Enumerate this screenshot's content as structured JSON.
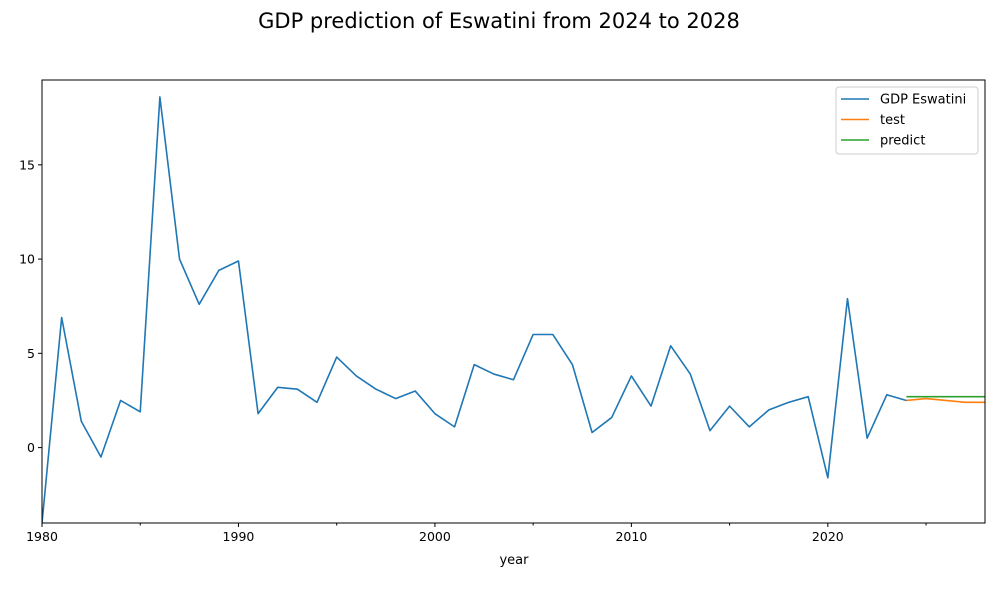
{
  "chart_data": {
    "type": "line",
    "title": "GDP prediction of Eswatini from 2024 to 2028",
    "xlabel": "year",
    "ylabel": "",
    "xlim": [
      1980,
      2028
    ],
    "ylim": [
      -4.0,
      19.5
    ],
    "xticks_major": [
      1980,
      1990,
      2000,
      2010,
      2020
    ],
    "xticks_minor": [
      1985,
      1995,
      2005,
      2015,
      2025
    ],
    "yticks": [
      0,
      5,
      10,
      15
    ],
    "legend_position": "top-right",
    "grid": false,
    "series": [
      {
        "name": "GDP Eswatini",
        "color": "#1f77b4",
        "x": [
          1980,
          1981,
          1982,
          1983,
          1984,
          1985,
          1986,
          1987,
          1988,
          1989,
          1990,
          1991,
          1992,
          1993,
          1994,
          1995,
          1996,
          1997,
          1998,
          1999,
          2000,
          2001,
          2002,
          2003,
          2004,
          2005,
          2006,
          2007,
          2008,
          2009,
          2010,
          2011,
          2012,
          2013,
          2014,
          2015,
          2016,
          2017,
          2018,
          2019,
          2020,
          2021,
          2022,
          2023,
          2024
        ],
        "values": [
          -4.0,
          6.9,
          1.4,
          -0.5,
          2.5,
          1.9,
          18.6,
          10.0,
          7.6,
          9.4,
          9.9,
          1.8,
          3.2,
          3.1,
          2.4,
          4.8,
          3.8,
          3.1,
          2.6,
          3.0,
          1.8,
          1.1,
          4.4,
          3.9,
          3.6,
          6.0,
          6.0,
          4.4,
          0.8,
          1.6,
          3.8,
          2.2,
          5.4,
          3.9,
          0.9,
          2.2,
          1.1,
          2.0,
          2.4,
          2.7,
          -1.6,
          7.9,
          0.5,
          2.8,
          2.5
        ]
      },
      {
        "name": "test",
        "color": "#ff7f0e",
        "x": [
          2024,
          2025,
          2026,
          2027,
          2028
        ],
        "values": [
          2.5,
          2.6,
          2.5,
          2.4,
          2.4
        ]
      },
      {
        "name": "predict",
        "color": "#2ca02c",
        "x": [
          2024,
          2025,
          2026,
          2027,
          2028
        ],
        "values": [
          2.7,
          2.7,
          2.7,
          2.7,
          2.7
        ]
      }
    ]
  }
}
